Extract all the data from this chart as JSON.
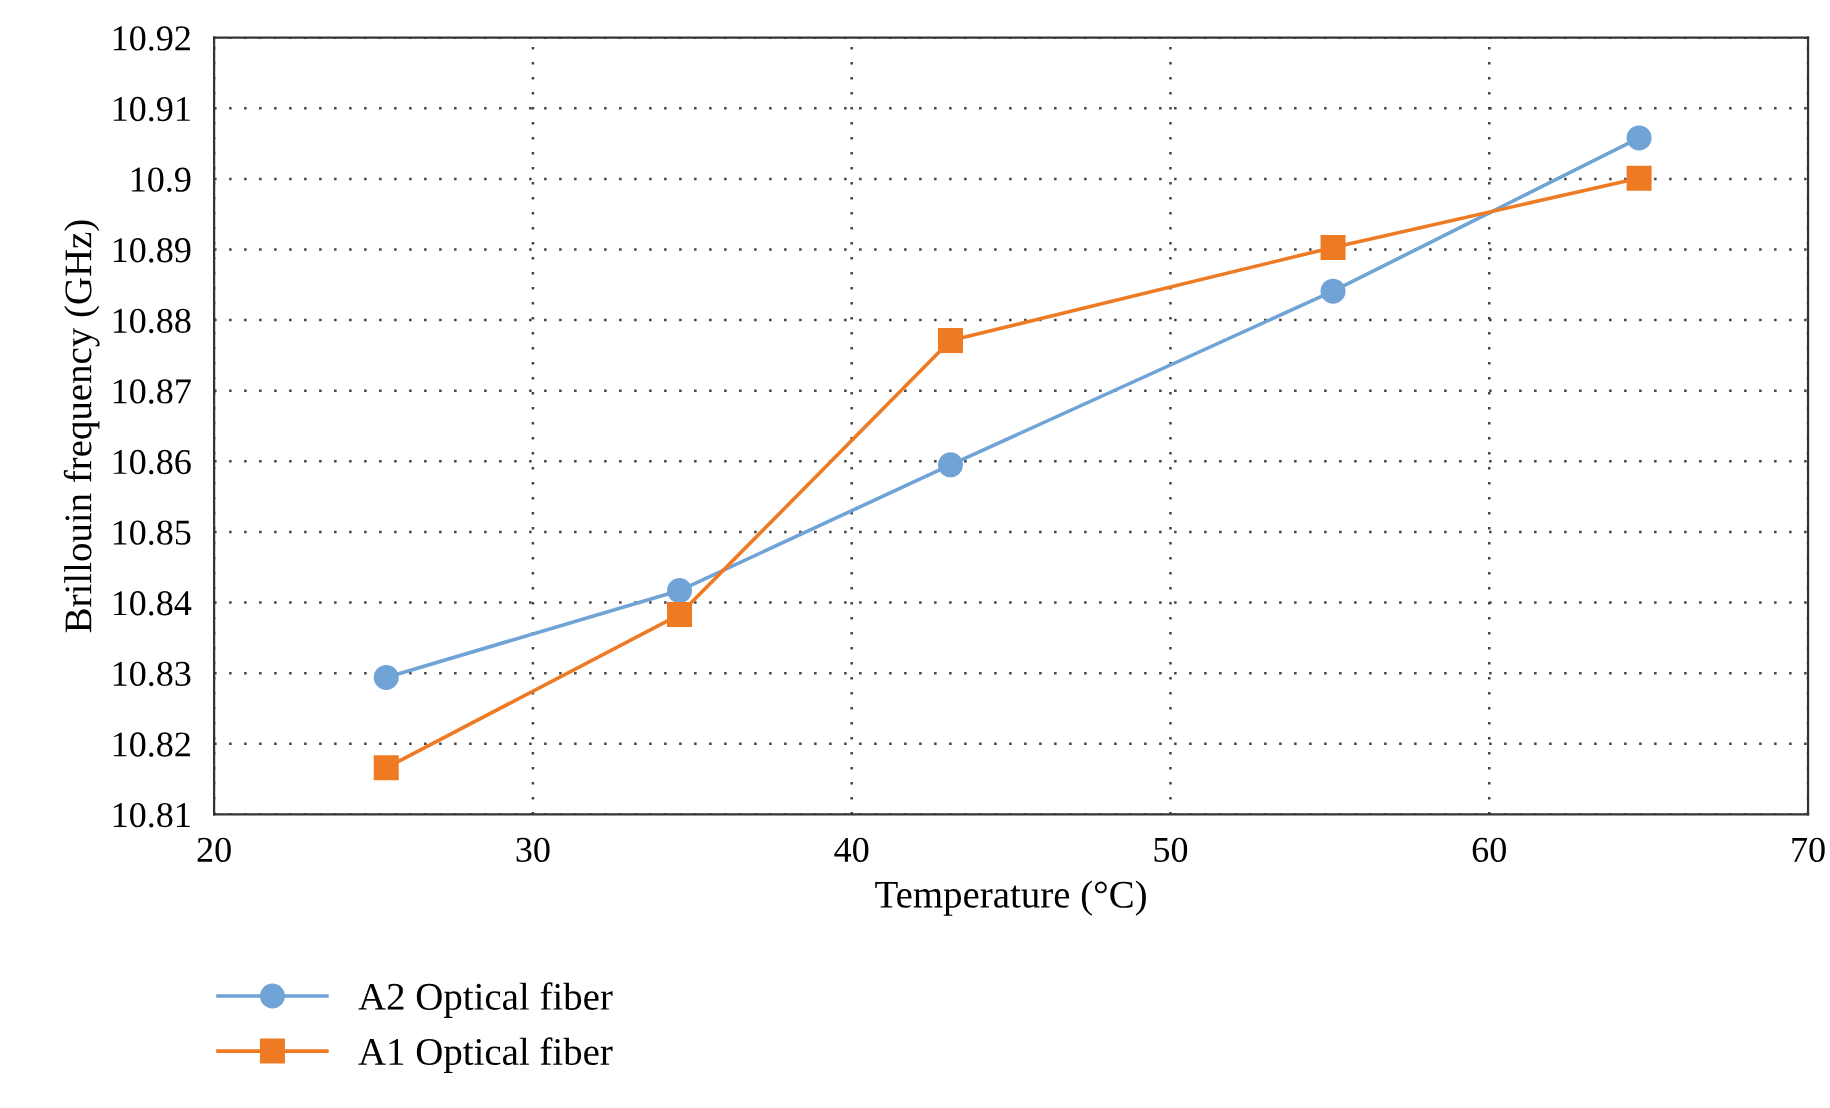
{
  "chart_data": {
    "type": "line",
    "xlabel": "Temperature (°C)",
    "ylabel": "Brillouin frequency (GHz)",
    "xlim": [
      20,
      70
    ],
    "xticks": [
      20,
      30,
      40,
      50,
      60,
      70
    ],
    "ylim": [
      10.81,
      10.92
    ],
    "yticks": [
      10.81,
      10.82,
      10.83,
      10.84,
      10.85,
      10.86,
      10.87,
      10.88,
      10.89,
      10.9,
      10.91,
      10.92
    ],
    "grid": true,
    "legend": "bottom left",
    "series": [
      {
        "name": "A2 Optical fiber",
        "color": "#70a3d6",
        "marker": "circle",
        "x": [
          25.4,
          34.6,
          43.1,
          55.1,
          64.7
        ],
        "values": [
          10.8294,
          10.8417,
          10.8595,
          10.8841,
          10.9058
        ]
      },
      {
        "name": "A1 Optical fiber",
        "color": "#ee7b24",
        "marker": "square",
        "x": [
          25.4,
          34.6,
          43.1,
          55.1,
          64.7
        ],
        "values": [
          10.8166,
          10.8383,
          10.8771,
          10.8903,
          10.9001
        ]
      }
    ]
  }
}
